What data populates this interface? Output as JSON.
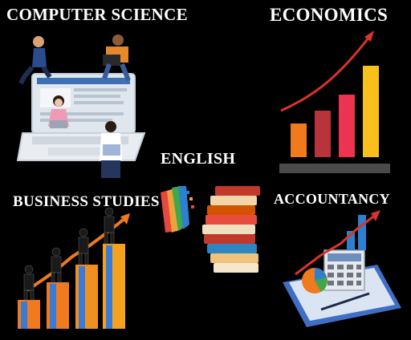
{
  "subjects": {
    "computer_science": "COMPUTER SCIENCE",
    "economics": "ECONOMICS",
    "english": "ENGLISH",
    "business_studies": "BUSINESS STUDIES",
    "accountancy": "ACCOUNTANCY"
  },
  "icons": {
    "computer_science": "people-with-laptops-icon",
    "economics": "rising-bar-chart-icon",
    "english": "books-icon",
    "business_studies": "businessmen-on-bars-icon",
    "accountancy": "calculator-chart-icon"
  },
  "colors": {
    "background": "#000000",
    "text": "#ffffff",
    "bar_orange": "#f07a1e",
    "bar_red": "#d23a3a",
    "bar_pink": "#ec3350",
    "bar_yellow": "#f9c01c",
    "trend_red": "#d8362a"
  }
}
